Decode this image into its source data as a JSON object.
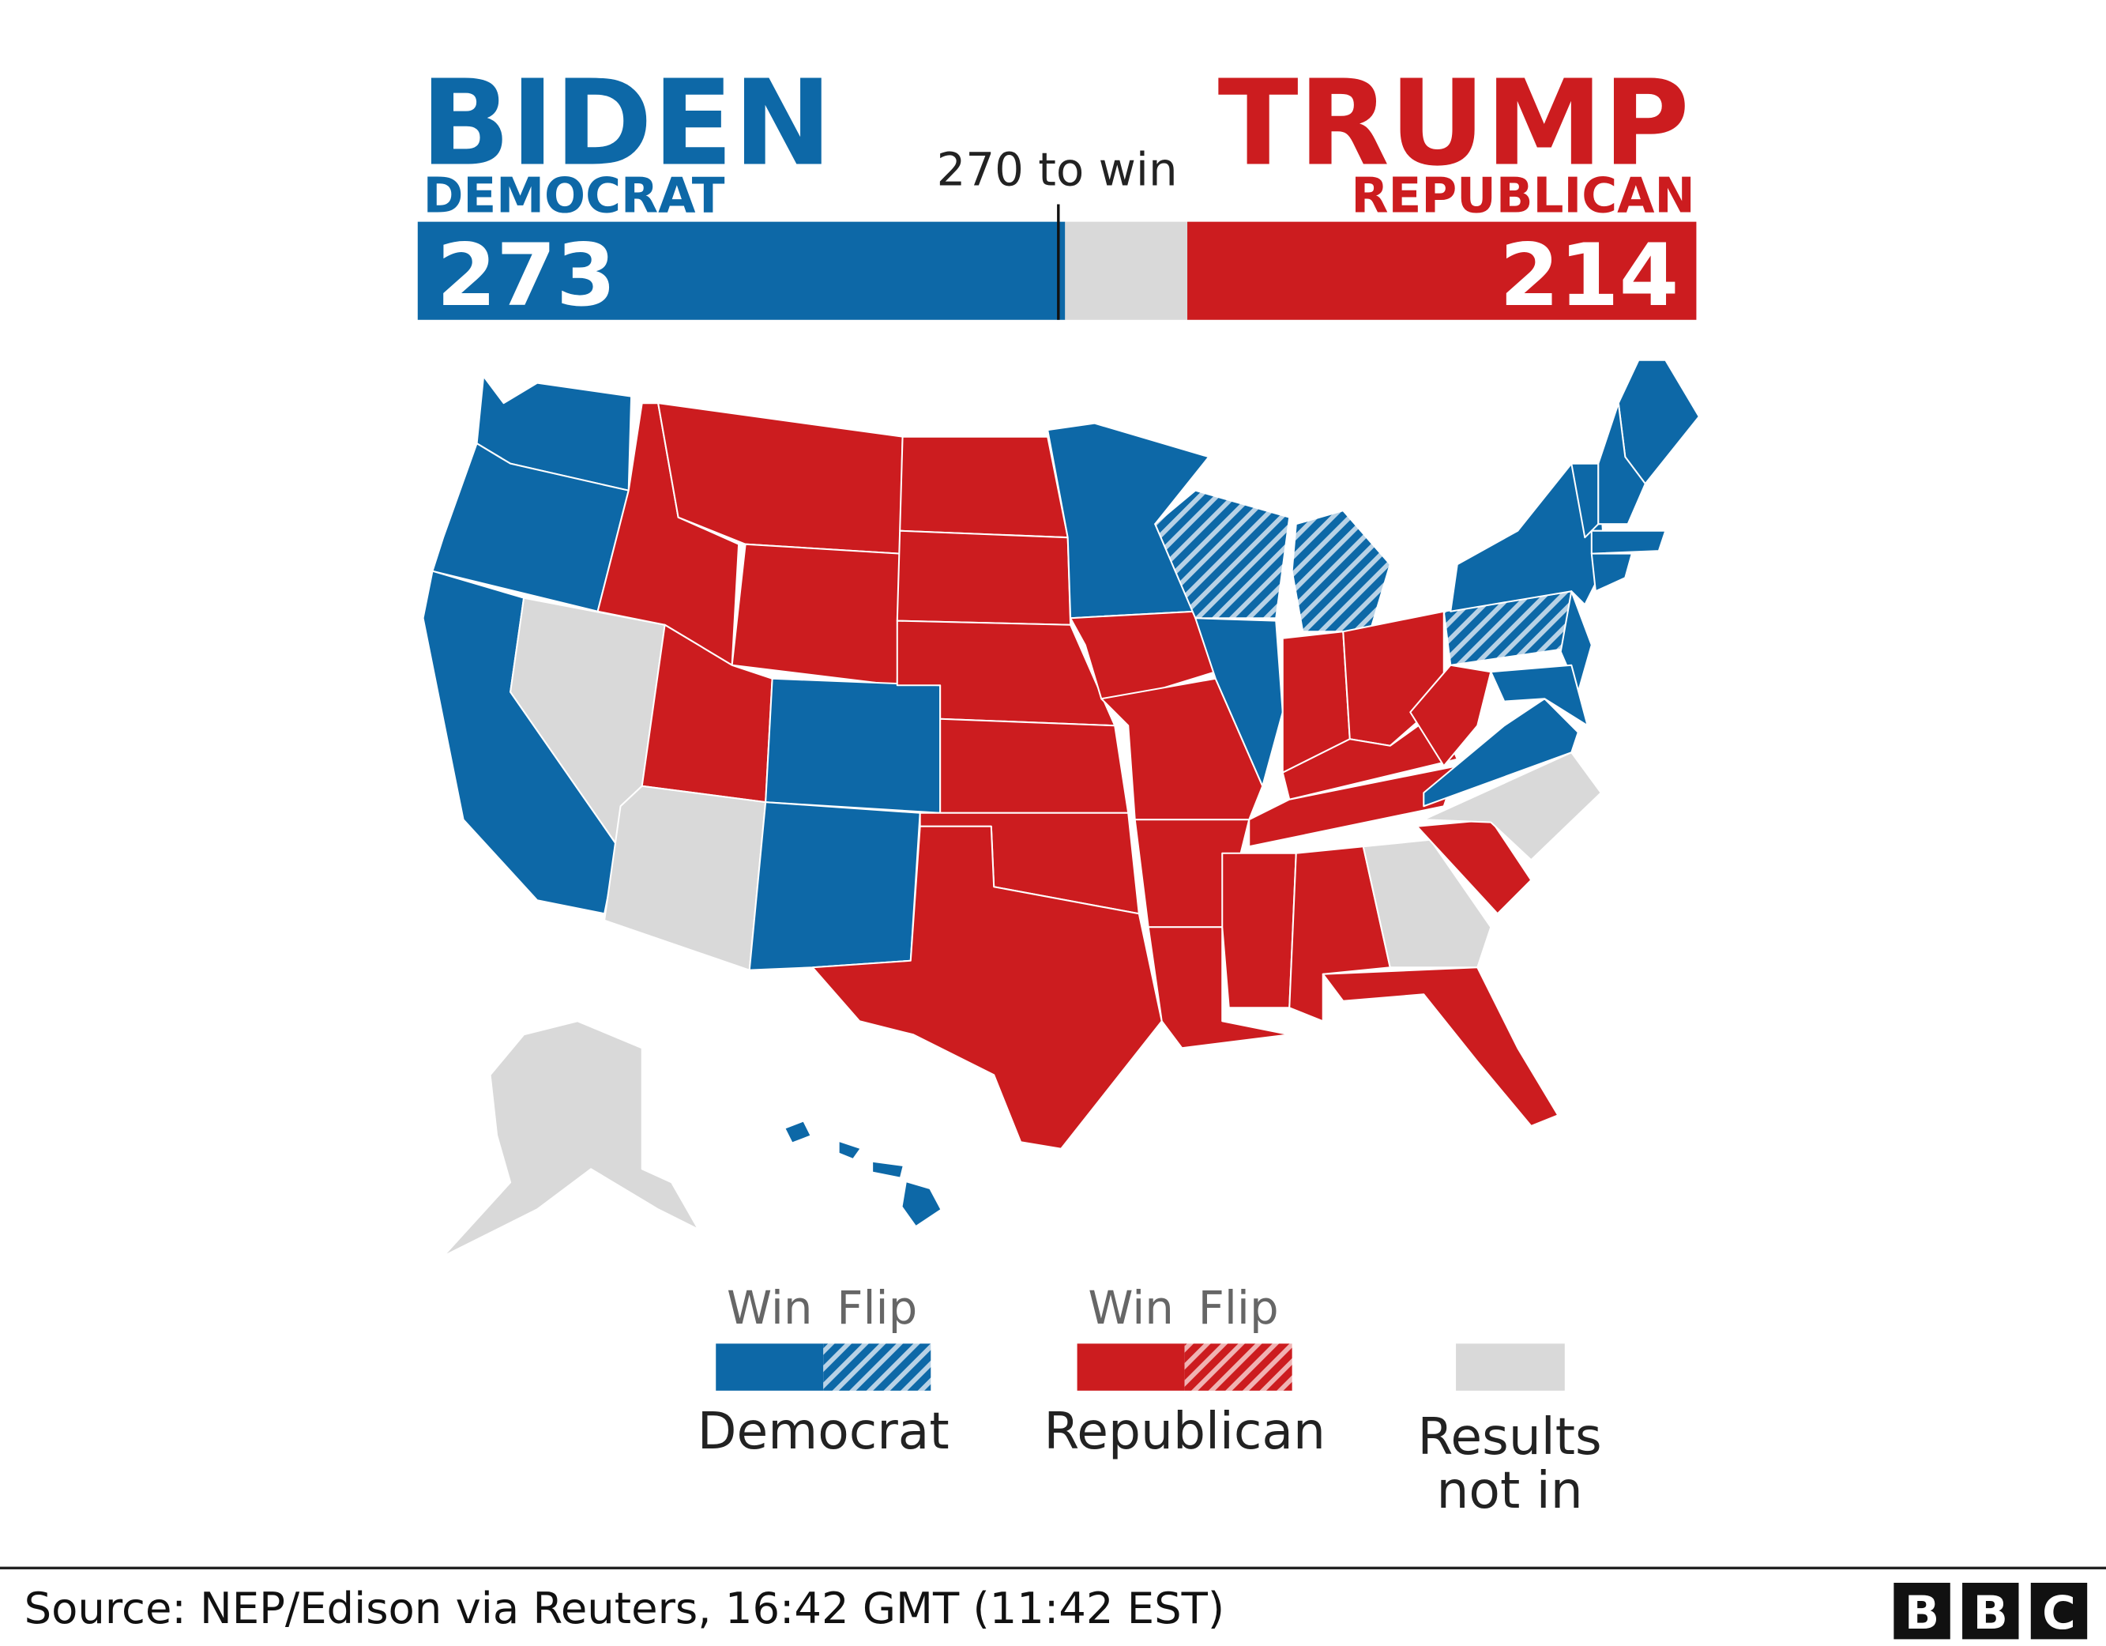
{
  "header": {
    "democrat": {
      "candidate": "BIDEN",
      "party": "DEMOCRAT",
      "votes": 273
    },
    "republican": {
      "candidate": "TRUMP",
      "party": "REPUBLICAN",
      "votes": 214
    },
    "threshold": "270 to win"
  },
  "legend": {
    "items": [
      {
        "labels": [
          "Win",
          "Flip"
        ],
        "name": "Democrat"
      },
      {
        "labels": [
          "Win",
          "Flip"
        ],
        "name": "Republican"
      },
      {
        "name_lines": [
          "Results",
          "not in"
        ]
      }
    ]
  },
  "footer": {
    "source": "Source: NEP/Edison via Reuters, 16:42 GMT (11:42 EST)",
    "logo": [
      "B",
      "B",
      "C"
    ]
  }
}
